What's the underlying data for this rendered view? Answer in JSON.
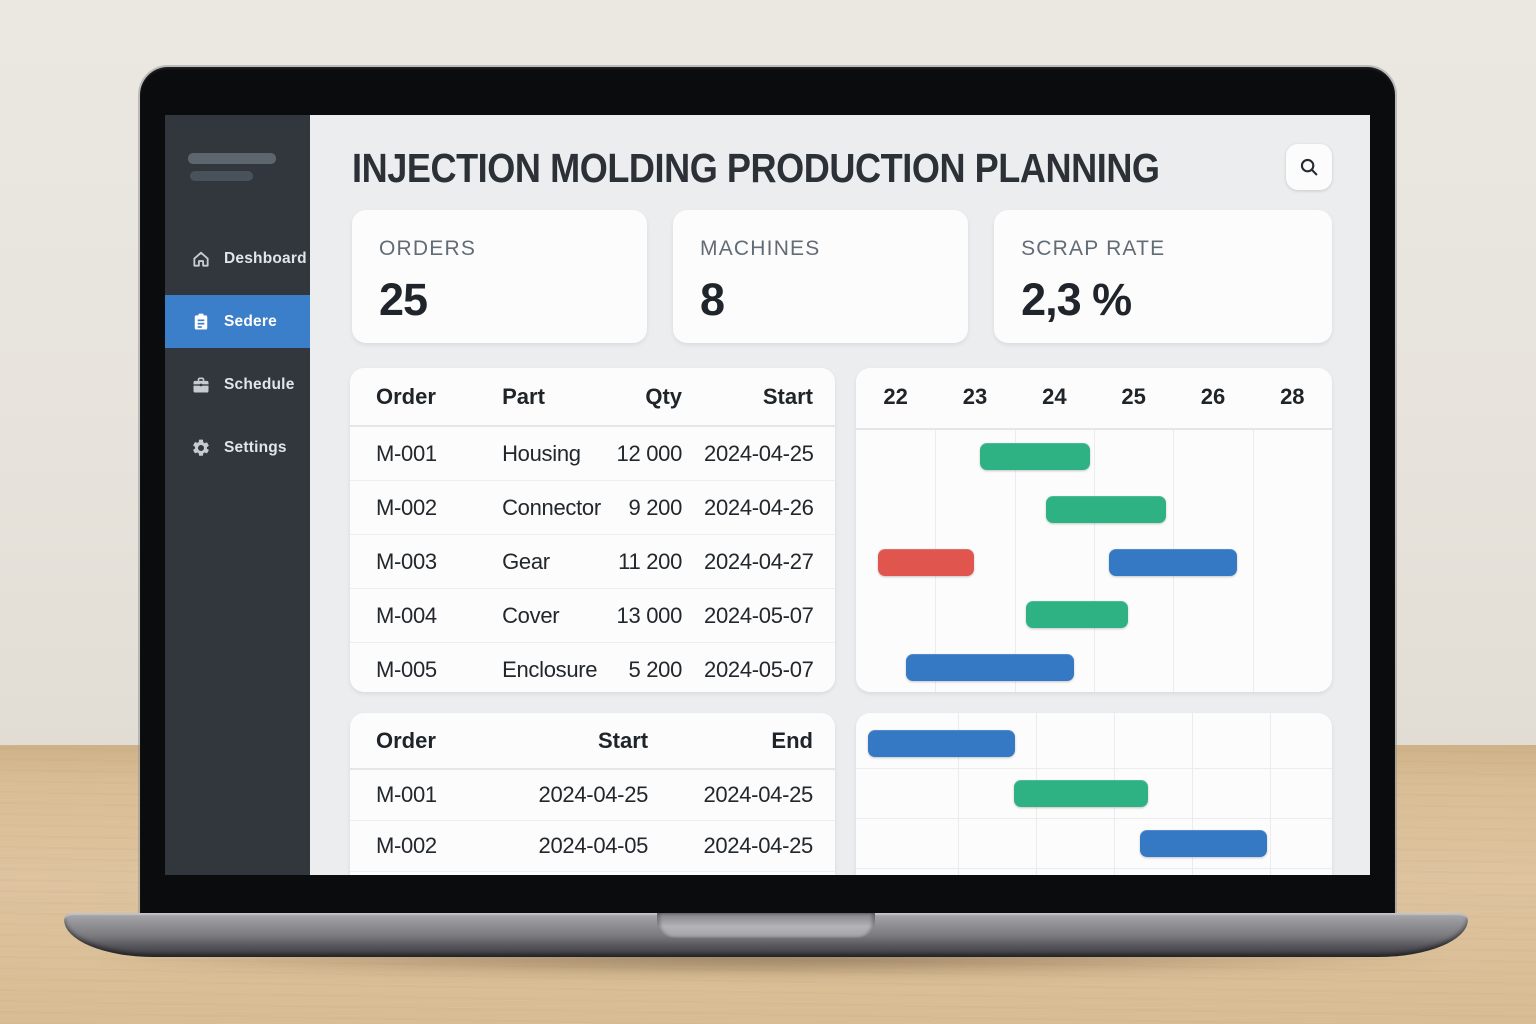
{
  "app": {
    "title": "INJECTION MOLDING PRODUCTION PLANNING"
  },
  "sidebar": {
    "logo": "logo-placeholder",
    "items": [
      {
        "label": "Deshboard",
        "icon": "home-icon",
        "active": false
      },
      {
        "label": "Sedere",
        "icon": "orders-clipboard-icon",
        "active": true
      },
      {
        "label": "Schedule",
        "icon": "schedule-briefcase-icon",
        "active": false
      },
      {
        "label": "Settings",
        "icon": "settings-gear-icon",
        "active": false
      }
    ]
  },
  "stats": [
    {
      "label": "ORDERS",
      "value": "25"
    },
    {
      "label": "MACHINES",
      "value": "8"
    },
    {
      "label": "SCRAP RATE",
      "value": "2,3 %"
    }
  ],
  "orders_table": {
    "headers": [
      "Order",
      "Part",
      "Qty",
      "Start"
    ],
    "rows": [
      [
        "M-001",
        "Housing",
        "12 000",
        "2024-04-25"
      ],
      [
        "M-002",
        "Connector",
        "9 200",
        "2024-04-26"
      ],
      [
        "M-003",
        "Gear",
        "11 200",
        "2024-04-27"
      ],
      [
        "M-004",
        "Cover",
        "13 000",
        "2024-05-07"
      ],
      [
        "M-005",
        "Enclosure",
        "5 200",
        "2024-05-07"
      ]
    ]
  },
  "gantt_top": {
    "day_labels": [
      "22",
      "23",
      "24",
      "25",
      "26",
      "28"
    ],
    "bars": [
      {
        "row": 0,
        "start_pct": 26.0,
        "width_pct": 23.1,
        "color": "green"
      },
      {
        "row": 1,
        "start_pct": 39.9,
        "width_pct": 25.2,
        "color": "green"
      },
      {
        "row": 2,
        "start_pct": 4.6,
        "width_pct": 20.2,
        "color": "red"
      },
      {
        "row": 2,
        "start_pct": 53.2,
        "width_pct": 26.9,
        "color": "blue"
      },
      {
        "row": 3,
        "start_pct": 35.7,
        "width_pct": 21.4,
        "color": "green"
      },
      {
        "row": 4,
        "start_pct": 10.5,
        "width_pct": 35.3,
        "color": "blue"
      }
    ]
  },
  "schedule_table": {
    "headers": [
      "Order",
      "Start",
      "End"
    ],
    "rows": [
      [
        "M-001",
        "2024-04-25",
        "2024-04-25"
      ],
      [
        "M-002",
        "2024-04-05",
        "2024-04-25"
      ]
    ]
  },
  "gantt_bottom": {
    "bars": [
      {
        "row": 0,
        "start_pct": 2.5,
        "width_pct": 30.9,
        "color": "blue"
      },
      {
        "row": 1,
        "start_pct": 33.2,
        "width_pct": 28.2,
        "color": "green"
      },
      {
        "row": 2,
        "start_pct": 59.7,
        "width_pct": 26.7,
        "color": "blue"
      }
    ]
  },
  "colors": {
    "accent_blue": "#3b7ec9",
    "bar_green": "#2eb183",
    "bar_blue": "#3578c4",
    "bar_red": "#e0564e",
    "sidebar_bg": "#31373d"
  }
}
